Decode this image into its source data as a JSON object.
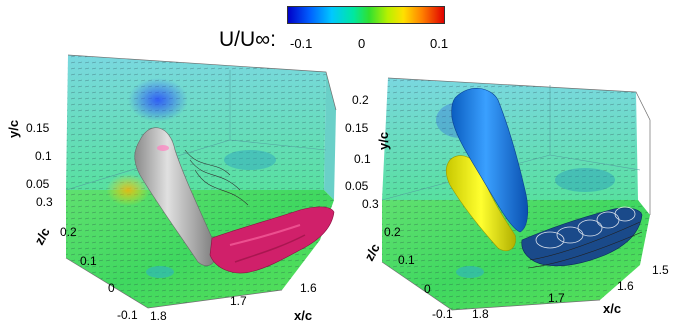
{
  "legend": {
    "title": "U/U∞:",
    "min": "-0.1",
    "mid": "0",
    "max": "0.1"
  },
  "left_panel": {
    "y_title": "y/c",
    "z_title": "z/c",
    "x_title": "x/c",
    "y_ticks": [
      "0.15",
      "0.1",
      "0.05"
    ],
    "z_ticks": [
      "0.3",
      "0.2",
      "0.1",
      "0",
      "-0.1"
    ],
    "x_ticks": [
      "1.8",
      "1.7",
      "1.6"
    ]
  },
  "right_panel": {
    "y_title": "y/c",
    "z_title": "z/c",
    "x_title": "x/c",
    "y_ticks": [
      "0.2",
      "0.15",
      "0.1",
      "0.05"
    ],
    "z_ticks": [
      "0.3",
      "0.2",
      "0.1",
      "0",
      "-0.1"
    ],
    "x_ticks": [
      "1.8",
      "1.7",
      "1.6",
      "1.5"
    ]
  },
  "colors": {
    "vortex_gray": "#b8b8b8",
    "wake_magenta": "#d0206a",
    "positive_yellow": "#f0f000",
    "negative_blue": "#1a7ee0",
    "floor_green": "#40d860",
    "wall_cyan": "#60d8d0"
  }
}
